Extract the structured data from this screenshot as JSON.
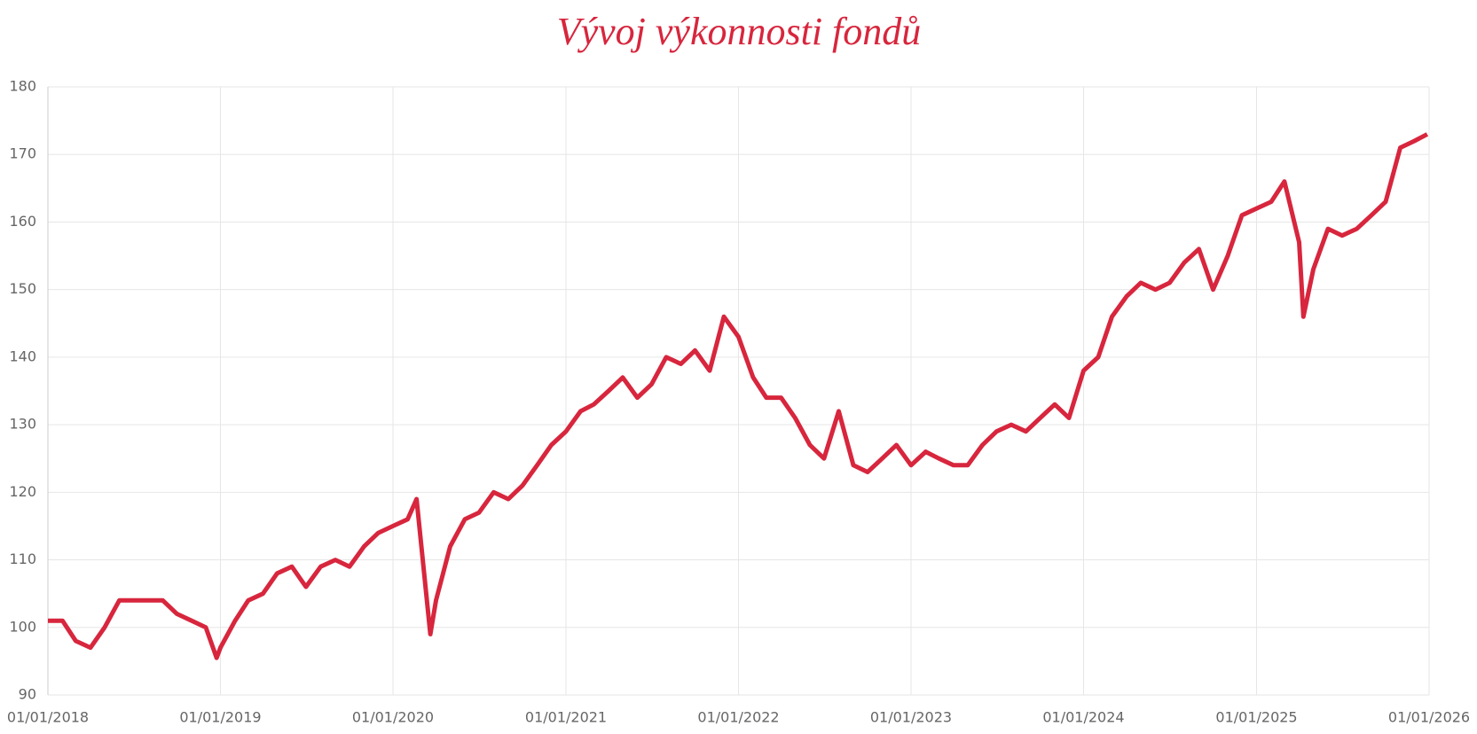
{
  "chart_data": {
    "type": "line",
    "title": "Vývoj výkonnosti fondů",
    "x": [
      "2018-01-01",
      "2018-02-01",
      "2018-03-01",
      "2018-04-01",
      "2018-05-01",
      "2018-06-01",
      "2018-07-01",
      "2018-08-01",
      "2018-09-01",
      "2018-10-01",
      "2018-11-01",
      "2018-12-01",
      "2018-12-24",
      "2019-01-01",
      "2019-02-01",
      "2019-03-01",
      "2019-04-01",
      "2019-05-01",
      "2019-06-01",
      "2019-07-01",
      "2019-08-01",
      "2019-09-01",
      "2019-10-01",
      "2019-11-01",
      "2019-12-01",
      "2020-01-01",
      "2020-02-01",
      "2020-02-20",
      "2020-03-20",
      "2020-04-01",
      "2020-05-01",
      "2020-06-01",
      "2020-07-01",
      "2020-08-01",
      "2020-09-01",
      "2020-10-01",
      "2020-11-01",
      "2020-12-01",
      "2021-01-01",
      "2021-02-01",
      "2021-03-01",
      "2021-04-01",
      "2021-05-01",
      "2021-06-01",
      "2021-07-01",
      "2021-08-01",
      "2021-09-01",
      "2021-10-01",
      "2021-11-01",
      "2021-12-01",
      "2022-01-01",
      "2022-02-01",
      "2022-03-01",
      "2022-04-01",
      "2022-05-01",
      "2022-06-01",
      "2022-07-01",
      "2022-08-01",
      "2022-09-01",
      "2022-10-01",
      "2022-11-01",
      "2022-12-01",
      "2023-01-01",
      "2023-02-01",
      "2023-03-01",
      "2023-04-01",
      "2023-05-01",
      "2023-06-01",
      "2023-07-01",
      "2023-08-01",
      "2023-09-01",
      "2023-10-01",
      "2023-11-01",
      "2023-12-01",
      "2024-01-01",
      "2024-02-01",
      "2024-03-01",
      "2024-04-01",
      "2024-05-01",
      "2024-06-01",
      "2024-07-01",
      "2024-08-01",
      "2024-09-01",
      "2024-10-01",
      "2024-11-01",
      "2024-12-01",
      "2025-01-01",
      "2025-02-01",
      "2025-03-01",
      "2025-04-01",
      "2025-04-10",
      "2025-05-01",
      "2025-06-01",
      "2025-07-01",
      "2025-08-01",
      "2025-09-01",
      "2025-10-01",
      "2025-11-01",
      "2025-12-01",
      "2025-12-28"
    ],
    "series": [
      {
        "color": "#d7263d",
        "values": [
          101,
          101,
          98,
          97,
          100,
          104,
          104,
          104,
          104,
          102,
          101,
          100,
          95.5,
          97,
          101,
          104,
          105,
          108,
          109,
          106,
          109,
          110,
          109,
          112,
          114,
          115,
          116,
          119,
          99,
          104,
          112,
          116,
          117,
          120,
          119,
          121,
          124,
          127,
          129,
          132,
          133,
          135,
          137,
          134,
          136,
          140,
          139,
          141,
          138,
          146,
          143,
          137,
          134,
          134,
          131,
          127,
          125,
          132,
          124,
          123,
          125,
          127,
          124,
          126,
          125,
          124,
          124,
          127,
          129,
          130,
          129,
          131,
          133,
          131,
          138,
          140,
          146,
          149,
          151,
          150,
          151,
          154,
          156,
          150,
          155,
          161,
          162,
          163,
          166,
          157,
          146,
          153,
          159,
          158,
          159,
          161,
          163,
          171,
          172,
          173
        ]
      }
    ],
    "xlim": [
      "2018-01-01",
      "2026-01-01"
    ],
    "xticks": [
      {
        "value": "2018-01-01",
        "label": "01/01/2018"
      },
      {
        "value": "2019-01-01",
        "label": "01/01/2019"
      },
      {
        "value": "2020-01-01",
        "label": "01/01/2020"
      },
      {
        "value": "2021-01-01",
        "label": "01/01/2021"
      },
      {
        "value": "2022-01-01",
        "label": "01/01/2022"
      },
      {
        "value": "2023-01-01",
        "label": "01/01/2023"
      },
      {
        "value": "2024-01-01",
        "label": "01/01/2024"
      },
      {
        "value": "2025-01-01",
        "label": "01/01/2025"
      },
      {
        "value": "2026-01-01",
        "label": "01/01/2026"
      }
    ],
    "ylim": [
      90,
      180
    ],
    "yticks": [
      90,
      100,
      110,
      120,
      130,
      140,
      150,
      160,
      170,
      180
    ],
    "grid": true
  }
}
